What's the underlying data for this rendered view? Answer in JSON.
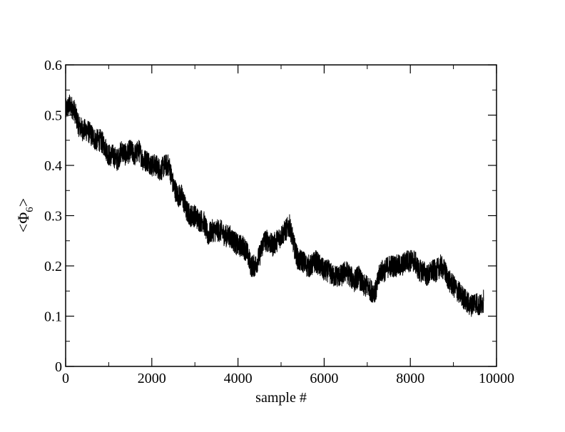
{
  "chart_data": {
    "type": "line",
    "title": "",
    "xlabel": "sample #",
    "ylabel": {
      "prefix": "<Φ",
      "subscript": "6",
      "suffix": ">"
    },
    "xlim": [
      0,
      10000
    ],
    "ylim": [
      0,
      0.6
    ],
    "x_ticks": [
      0,
      2000,
      4000,
      6000,
      8000,
      10000
    ],
    "x_tick_labels": [
      "0",
      "2000",
      "4000",
      "6000",
      "8000",
      "10000"
    ],
    "x_minor_step": 1000,
    "y_ticks": [
      0,
      0.1,
      0.2,
      0.3,
      0.4,
      0.5,
      0.6
    ],
    "y_tick_labels": [
      "0",
      "0.1",
      "0.2",
      "0.3",
      "0.4",
      "0.5",
      "0.6"
    ],
    "y_minor_step": 0.05,
    "grid": false,
    "legend": "none",
    "line_color": "#000000",
    "series": [
      {
        "x": [
          0,
          100,
          200,
          300,
          400,
          500,
          600,
          700,
          800,
          900,
          1000,
          1100,
          1200,
          1300,
          1400,
          1500,
          1600,
          1700,
          1800,
          1900,
          2000,
          2100,
          2200,
          2300,
          2400,
          2500,
          2600,
          2700,
          2800,
          2900,
          3000,
          3100,
          3200,
          3300,
          3400,
          3500,
          3600,
          3700,
          3800,
          3900,
          4000,
          4100,
          4200,
          4300,
          4400,
          4500,
          4600,
          4700,
          4800,
          4900,
          5000,
          5100,
          5200,
          5300,
          5400,
          5500,
          5600,
          5700,
          5800,
          5900,
          6000,
          6100,
          6200,
          6300,
          6400,
          6500,
          6600,
          6700,
          6800,
          6900,
          7000,
          7100,
          7200,
          7300,
          7400,
          7500,
          7600,
          7700,
          7800,
          7900,
          8000,
          8100,
          8200,
          8300,
          8400,
          8500,
          8600,
          8700,
          8800,
          8900,
          9000,
          9100,
          9200,
          9300,
          9400,
          9500,
          9600,
          9700
        ],
        "y": [
          0.51,
          0.52,
          0.51,
          0.48,
          0.47,
          0.47,
          0.46,
          0.45,
          0.45,
          0.44,
          0.42,
          0.42,
          0.41,
          0.43,
          0.42,
          0.43,
          0.42,
          0.43,
          0.41,
          0.41,
          0.4,
          0.4,
          0.39,
          0.4,
          0.4,
          0.36,
          0.34,
          0.34,
          0.31,
          0.3,
          0.3,
          0.29,
          0.29,
          0.26,
          0.27,
          0.27,
          0.27,
          0.26,
          0.26,
          0.25,
          0.24,
          0.24,
          0.23,
          0.2,
          0.2,
          0.22,
          0.25,
          0.25,
          0.24,
          0.25,
          0.26,
          0.27,
          0.28,
          0.24,
          0.21,
          0.21,
          0.2,
          0.2,
          0.21,
          0.2,
          0.19,
          0.19,
          0.18,
          0.18,
          0.18,
          0.19,
          0.18,
          0.17,
          0.18,
          0.16,
          0.16,
          0.15,
          0.15,
          0.19,
          0.19,
          0.2,
          0.2,
          0.2,
          0.2,
          0.21,
          0.21,
          0.21,
          0.19,
          0.19,
          0.18,
          0.19,
          0.19,
          0.2,
          0.19,
          0.17,
          0.16,
          0.15,
          0.14,
          0.13,
          0.12,
          0.13,
          0.12,
          0.13
        ]
      }
    ]
  }
}
